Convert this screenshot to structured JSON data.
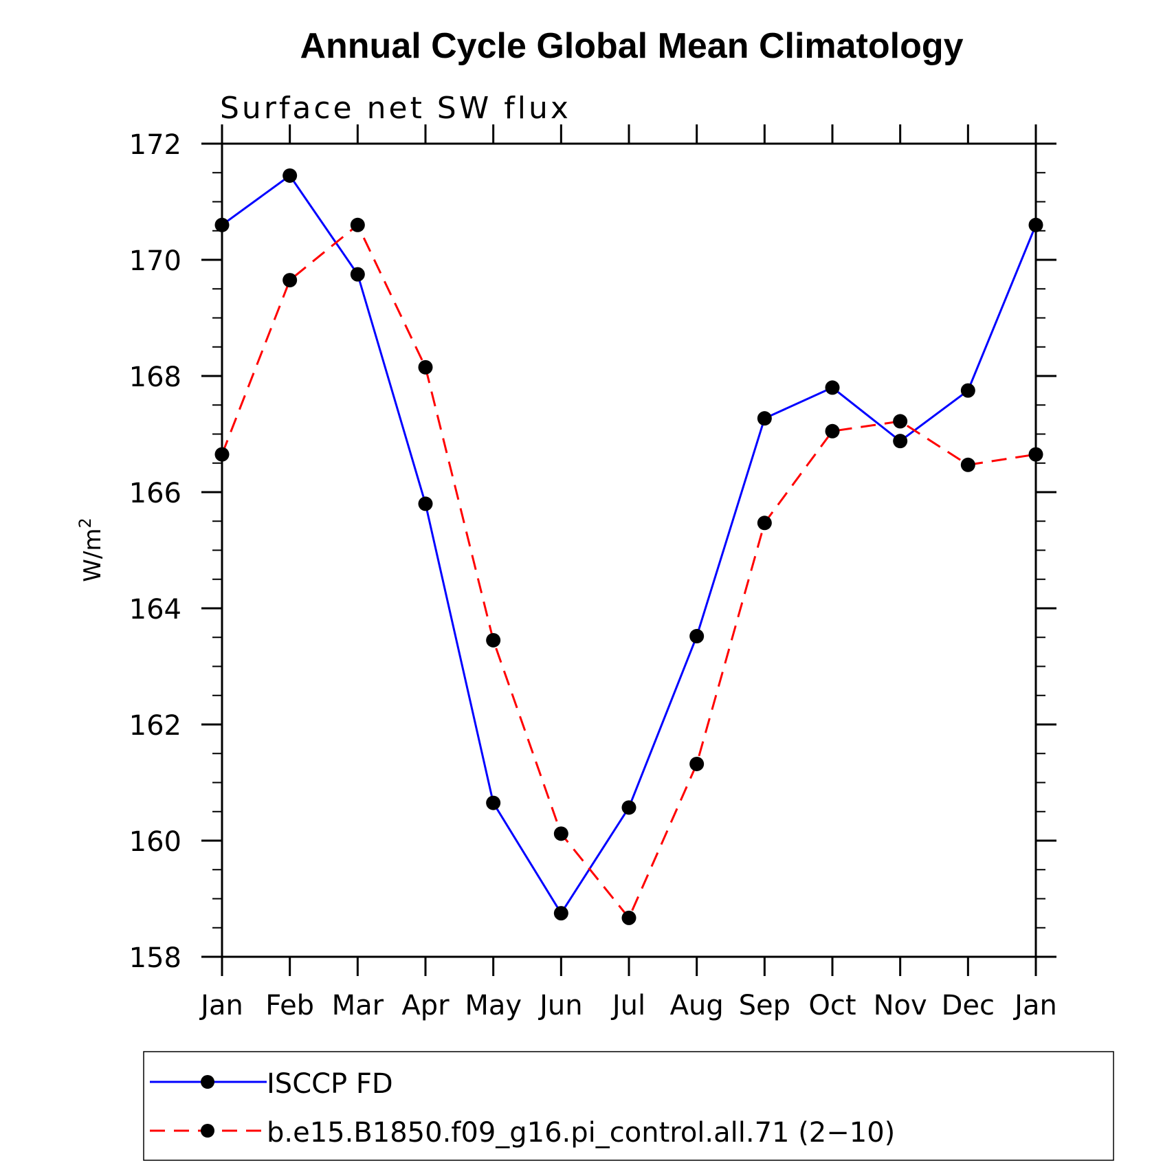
{
  "chart_data": {
    "type": "line",
    "title": "Annual Cycle Global Mean Climatology",
    "subtitle": "Surface net SW flux",
    "xlabel": "",
    "ylabel": "W/m",
    "ylabel_sup": "2",
    "categories": [
      "Jan",
      "Feb",
      "Mar",
      "Apr",
      "May",
      "Jun",
      "Jul",
      "Aug",
      "Sep",
      "Oct",
      "Nov",
      "Dec",
      "Jan"
    ],
    "ylim": [
      158,
      172
    ],
    "yticks": [
      158,
      160,
      162,
      164,
      166,
      168,
      170,
      172
    ],
    "series": [
      {
        "name": "ISCCP FD",
        "color": "#0000ff",
        "dash": "solid",
        "values": [
          170.6,
          171.45,
          169.75,
          165.8,
          160.65,
          158.75,
          160.57,
          163.52,
          167.27,
          167.8,
          166.88,
          167.75,
          170.6
        ]
      },
      {
        "name": "b.e15.B1850.f09_g16.pi_control.all.71 (2−10)",
        "color": "#ff0000",
        "dash": "dashed",
        "values": [
          166.65,
          169.65,
          170.6,
          168.15,
          163.45,
          160.12,
          158.67,
          161.32,
          165.47,
          167.05,
          167.22,
          166.47,
          166.65
        ]
      }
    ],
    "grid": false,
    "legend_position": "bottom"
  }
}
